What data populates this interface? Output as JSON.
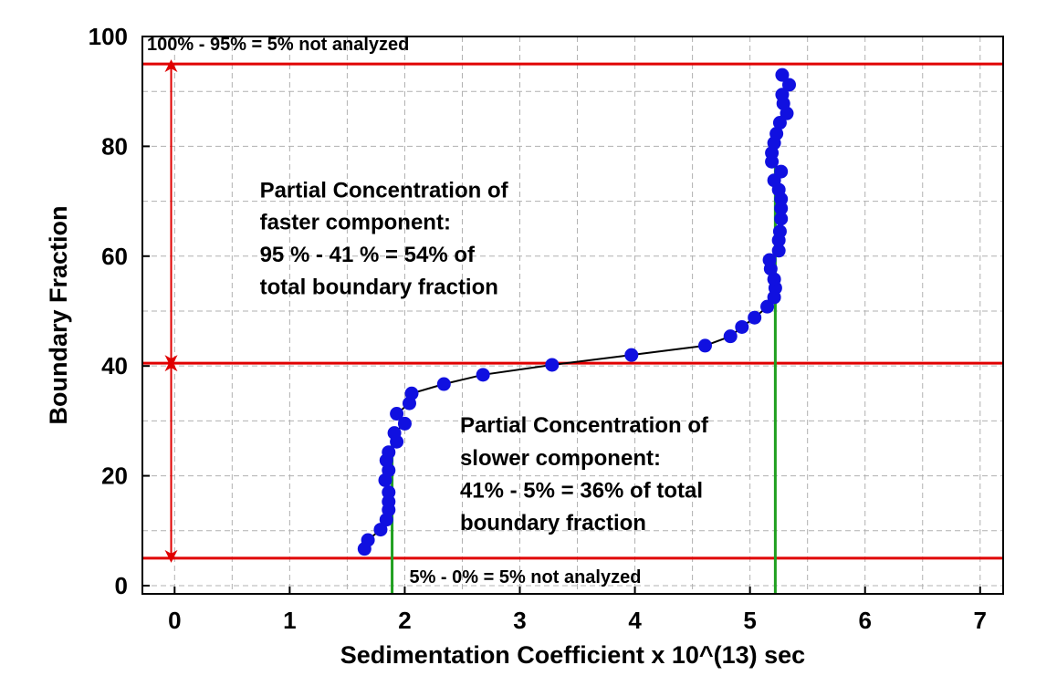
{
  "chart_data": {
    "type": "scatter",
    "title": "",
    "xlabel": "Sedimentation Coefficient x 10^(13) sec",
    "ylabel": "Boundary Fraction",
    "xlim": [
      -0.28,
      7.2
    ],
    "ylim": [
      -1.5,
      100
    ],
    "grid": true,
    "x_ticks": [
      "0",
      "1",
      "2",
      "3",
      "4",
      "5",
      "6",
      "7"
    ],
    "y_ticks": [
      "0",
      "20",
      "40",
      "60",
      "80",
      "100"
    ],
    "colors": {
      "points": "#1010e0",
      "line": "#000000",
      "horizontal_markers": "#e00000",
      "vertical_markers": "#20a020",
      "arrows": "#e00000",
      "grid": "#b0b0b0"
    },
    "series": [
      {
        "points": [
          [
            1.65,
            6.7
          ],
          [
            1.68,
            8.3
          ],
          [
            1.79,
            10.2
          ],
          [
            1.84,
            12.0
          ],
          [
            1.86,
            13.8
          ],
          [
            1.86,
            15.3
          ],
          [
            1.86,
            17.0
          ],
          [
            1.83,
            19.2
          ],
          [
            1.86,
            21.0
          ],
          [
            1.84,
            22.8
          ],
          [
            1.86,
            24.3
          ],
          [
            1.93,
            26.2
          ],
          [
            1.91,
            27.8
          ],
          [
            2.0,
            29.5
          ],
          [
            1.93,
            31.3
          ],
          [
            2.04,
            33.2
          ],
          [
            2.06,
            35.0
          ],
          [
            2.34,
            36.7
          ],
          [
            2.68,
            38.4
          ],
          [
            3.28,
            40.2
          ],
          [
            3.97,
            42.0
          ],
          [
            4.61,
            43.7
          ],
          [
            4.83,
            45.4
          ],
          [
            4.93,
            47.1
          ],
          [
            5.04,
            48.8
          ],
          [
            5.15,
            50.8
          ],
          [
            5.21,
            52.5
          ],
          [
            5.22,
            54.2
          ],
          [
            5.21,
            55.8
          ],
          [
            5.18,
            57.7
          ],
          [
            5.17,
            59.3
          ],
          [
            5.25,
            61.0
          ],
          [
            5.25,
            62.9
          ],
          [
            5.26,
            64.5
          ],
          [
            5.27,
            66.8
          ],
          [
            5.27,
            68.7
          ],
          [
            5.27,
            70.4
          ],
          [
            5.25,
            72.1
          ],
          [
            5.21,
            73.8
          ],
          [
            5.27,
            75.4
          ],
          [
            5.19,
            77.2
          ],
          [
            5.19,
            78.8
          ],
          [
            5.21,
            80.6
          ],
          [
            5.23,
            82.3
          ],
          [
            5.26,
            84.3
          ],
          [
            5.32,
            86.0
          ],
          [
            5.29,
            87.8
          ],
          [
            5.28,
            89.4
          ],
          [
            5.34,
            91.2
          ],
          [
            5.28,
            93.0
          ]
        ]
      }
    ],
    "horizontal_lines": [
      5,
      40.5,
      95
    ],
    "vertical_lines": [
      {
        "x": 1.89,
        "y_top": 26
      },
      {
        "x": 5.22,
        "y_top": 81
      }
    ],
    "arrows": [
      {
        "x": -0.03,
        "from": 5,
        "to": 40.5
      },
      {
        "x": -0.03,
        "from": 40.5,
        "to": 95
      }
    ],
    "annotations": [
      {
        "text": "100% - 95% = 5% not analyzed",
        "x": -0.24,
        "y": 97.5,
        "size": "small"
      },
      {
        "text": "Partial Concentration of",
        "x": 0.74,
        "y": 70.7,
        "size": "big"
      },
      {
        "text": "faster component:",
        "x": 0.74,
        "y": 64.9,
        "size": "big"
      },
      {
        "text": "95 % - 41 % = 54% of",
        "x": 0.74,
        "y": 59.0,
        "size": "big"
      },
      {
        "text": "total boundary fraction",
        "x": 0.74,
        "y": 53.1,
        "size": "big"
      },
      {
        "text": "Partial Concentration of",
        "x": 2.48,
        "y": 27.9,
        "size": "big"
      },
      {
        "text": "slower component:",
        "x": 2.48,
        "y": 21.9,
        "size": "big"
      },
      {
        "text": "41% - 5% = 36% of total",
        "x": 2.48,
        "y": 16.0,
        "size": "big"
      },
      {
        "text": "boundary fraction",
        "x": 2.48,
        "y": 10.1,
        "size": "big"
      },
      {
        "text": "5% - 0% = 5% not analyzed",
        "x": 2.04,
        "y": 0.5,
        "size": "small"
      }
    ]
  }
}
